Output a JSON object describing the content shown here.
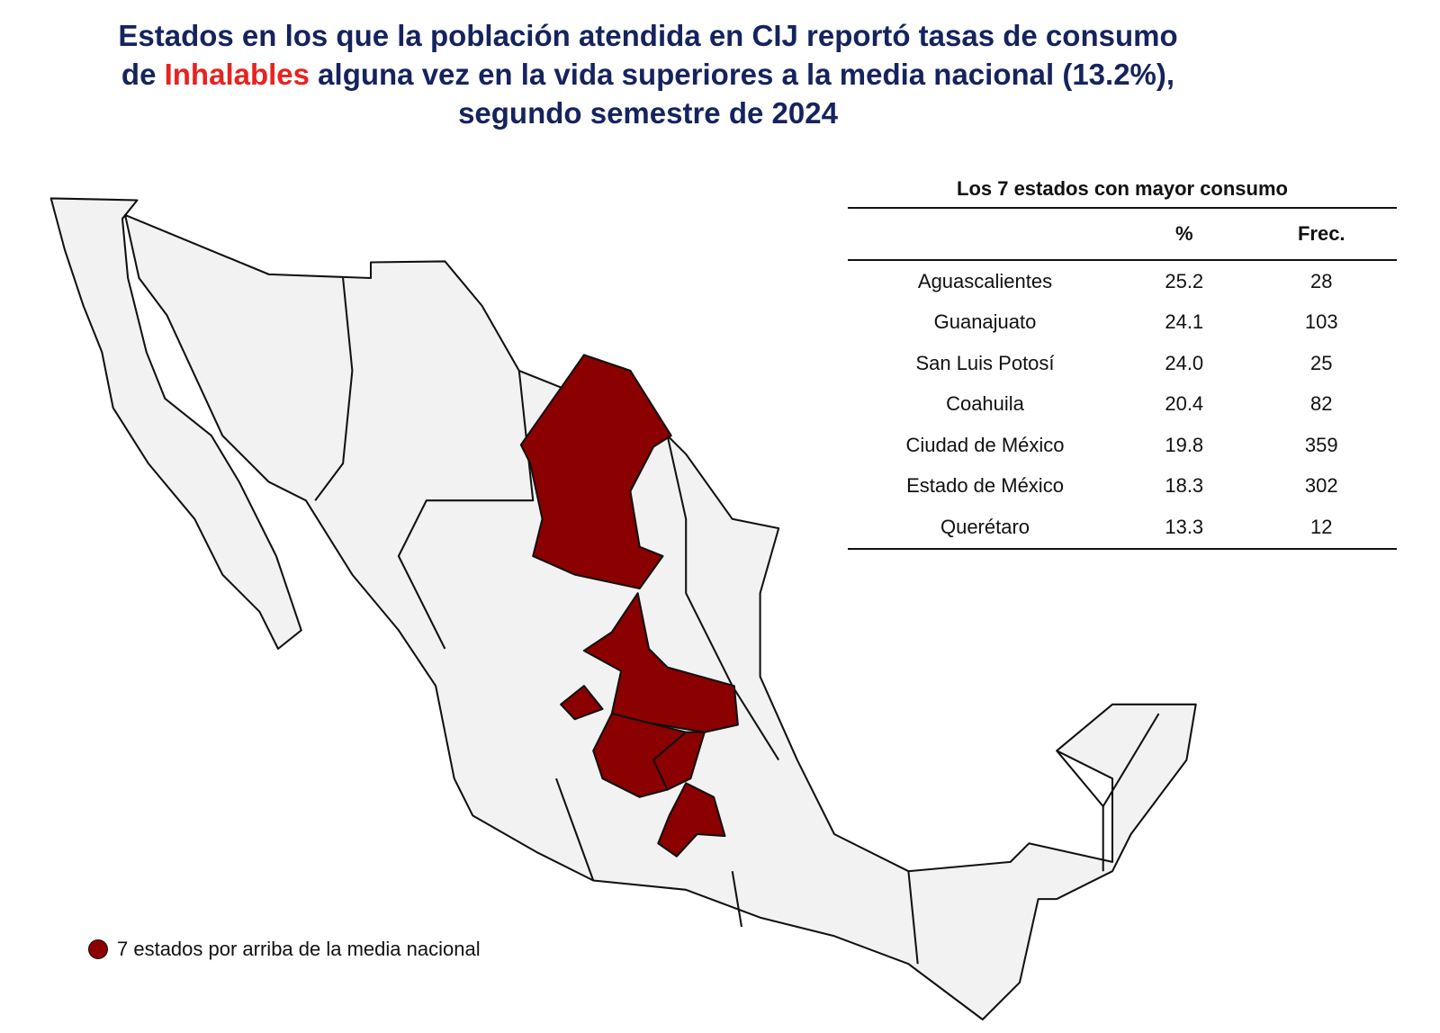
{
  "title": {
    "line1": "Estados en los que la población atendida en CIJ reportó tasas de consumo",
    "line2_start": "de",
    "highlight": "Inhalables",
    "line2_end": "alguna vez en la vida superiores a la media nacional (13.2%),",
    "line3": "segundo semestre de 2024"
  },
  "table": {
    "title": "Los 7 estados con mayor consumo",
    "headers": [
      "",
      "%",
      "Frec."
    ],
    "rows": [
      [
        "Aguascalientes",
        "25.2",
        "28"
      ],
      [
        "Guanajuato",
        "24.1",
        "103"
      ],
      [
        "San Luis Potosí",
        "24.0",
        "25"
      ],
      [
        "Coahuila",
        "20.4",
        "82"
      ],
      [
        "Ciudad de México",
        "19.8",
        "359"
      ],
      [
        "Estado de México",
        "18.3",
        "302"
      ],
      [
        "Querétaro",
        "13.3",
        "12"
      ]
    ]
  },
  "legend": {
    "label": "7 estados por arriba de la media nacional"
  }
}
